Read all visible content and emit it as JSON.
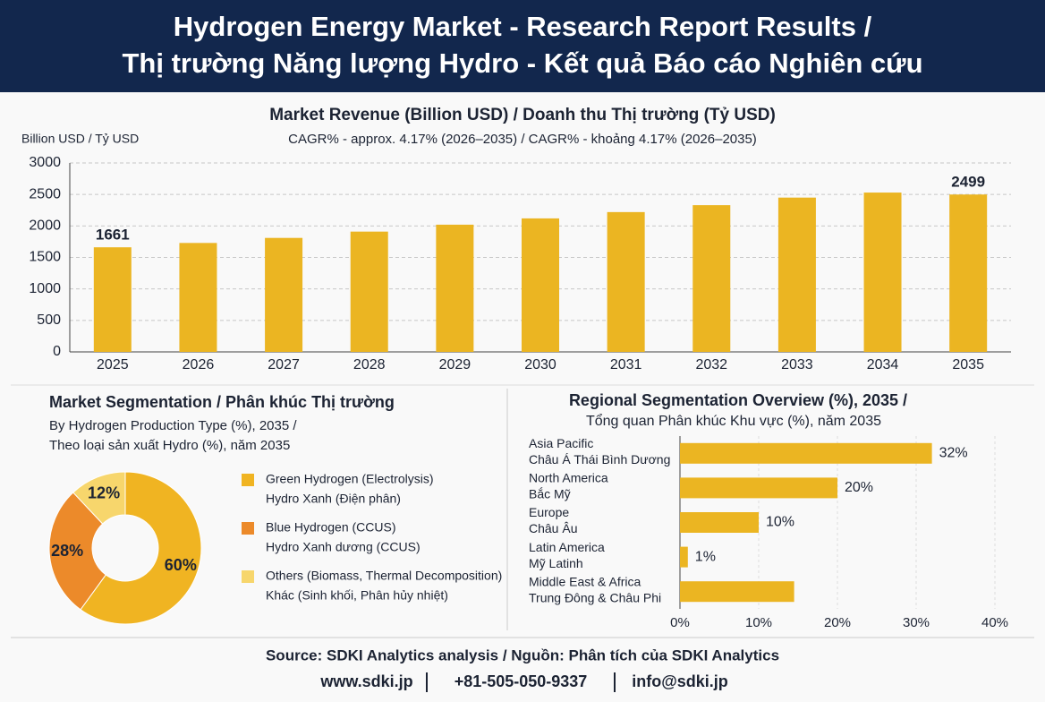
{
  "header": {
    "title_lines": [
      "Hydrogen Energy Market - Research Report Results /",
      "Thị trường Năng lượng Hydro - Kết quả Báo cáo Nghiên cứu"
    ]
  },
  "chart_data": [
    {
      "type": "bar",
      "title": "Market Revenue (Billion USD) / Doanh thu Thị trường (Tỷ USD)",
      "subtitle": "CAGR% - approx. 4.17% (2026–2035) / CAGR% - khoảng 4.17% (2026–2035)",
      "ylabel": "Billion USD / Tỷ USD",
      "categories": [
        "2025",
        "2026",
        "2027",
        "2028",
        "2029",
        "2030",
        "2031",
        "2032",
        "2033",
        "2034",
        "2035"
      ],
      "values": [
        1661,
        1730,
        1810,
        1910,
        2020,
        2120,
        2220,
        2330,
        2450,
        2530,
        2499
      ],
      "value_labels": [
        "1661",
        null,
        null,
        null,
        null,
        null,
        null,
        null,
        null,
        null,
        "2499"
      ],
      "color": "#ebb522",
      "ylim": [
        0,
        3000
      ],
      "yticks": [
        0,
        500,
        1000,
        1500,
        2000,
        2500,
        3000
      ],
      "grid": true
    },
    {
      "type": "pie",
      "title": "Market Segmentation / Phân khúc Thị trường",
      "subtitle_lines": [
        "By Hydrogen Production Type (%), 2035 /",
        "Theo loại sản xuất Hydro (%), năm 2035"
      ],
      "categories": [
        "Green Hydrogen (Electrolysis)",
        "Blue Hydrogen (CCUS)",
        "Others (Biomass, Thermal Decomposition)"
      ],
      "categories_vi": [
        "Hydro Xanh (Điện phân)",
        "Hydro Xanh dương (CCUS)",
        "Khác (Sinh khối, Phân hủy nhiệt)"
      ],
      "values": [
        60,
        28,
        12
      ],
      "value_labels": [
        "60%",
        "28%",
        "12%"
      ],
      "colors": [
        "#f0b422",
        "#ec8a2a",
        "#f7d66c"
      ],
      "donut": true
    },
    {
      "type": "hbar",
      "title": "Regional Segmentation Overview (%), 2035 /",
      "subtitle": "Tổng quan Phân khúc Khu vực (%), năm 2035",
      "categories": [
        "Asia Pacific",
        "North America",
        "Europe",
        "Latin America",
        "Middle East & Africa"
      ],
      "categories_vi": [
        "Châu Á Thái Bình Dương",
        "Bắc Mỹ",
        "Châu Âu",
        "Mỹ Latinh",
        "Trung Đông & Châu Phi"
      ],
      "values": [
        32,
        20,
        10,
        1,
        14.5
      ],
      "value_labels": [
        "32%",
        "20%",
        "10%",
        "1%",
        null
      ],
      "color": "#ebb522",
      "xlim": [
        0,
        40
      ],
      "xticks": [
        {
          "value": 0,
          "label": "0%"
        },
        {
          "value": 10,
          "label": "10%"
        },
        {
          "value": 20,
          "label": "20%"
        },
        {
          "value": 30,
          "label": "30%"
        },
        {
          "value": 40,
          "label": "40%"
        }
      ],
      "grid": true
    }
  ],
  "footer": {
    "source": "Source: SDKI Analytics analysis / Nguồn: Phân tích của SDKI Analytics",
    "contacts": [
      "www.sdki.jp",
      "+81-505-050-9337",
      "info@sdki.jp"
    ]
  }
}
